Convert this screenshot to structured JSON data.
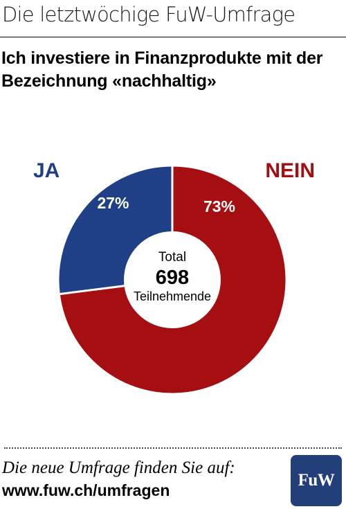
{
  "header": {
    "title": "Die letztwöchige FuW-Umfrage"
  },
  "headline": "Ich investiere in Finanzprodukte mit der Bezeichnung «nachhaltig»",
  "colors": {
    "ja": "#1f3f86",
    "nein": "#a60f12",
    "text": "#000000"
  },
  "chart_data": {
    "type": "pie",
    "style": "donut",
    "categories": [
      "JA",
      "NEIN"
    ],
    "values": [
      27,
      73
    ],
    "value_labels": [
      "27%",
      "73%"
    ],
    "colors": [
      "#1f3f86",
      "#a60f12"
    ],
    "center": {
      "label_top": "Total",
      "count": "698",
      "label_bottom": "Teilnehmende"
    }
  },
  "footer": {
    "note": "Die neue Umfrage finden Sie auf:",
    "url": "www.fuw.ch/umfragen",
    "logo_text": "FuW"
  }
}
